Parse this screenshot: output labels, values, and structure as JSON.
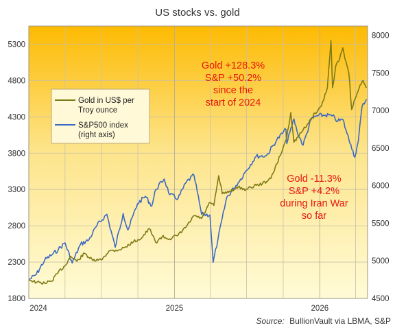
{
  "chart_data": {
    "type": "line",
    "title": "US stocks vs. gold",
    "source_label": "Source:",
    "source_text": "BullionVault via LBMA, S&P",
    "x_ticks": [
      "2024",
      "2025",
      "2026"
    ],
    "x_range": [
      "2024-01",
      "2026-05"
    ],
    "y_left": {
      "ticks": [
        1800,
        2300,
        2800,
        3300,
        3800,
        4300,
        4800,
        5300
      ],
      "range": [
        1800,
        5550
      ]
    },
    "y_right": {
      "ticks": [
        4500,
        5000,
        5500,
        6000,
        6500,
        7000,
        7500,
        8000
      ],
      "range": [
        4500,
        8125
      ]
    },
    "legend": [
      {
        "name": "Gold in US$ per Troy ounce",
        "color": "#7d7a16"
      },
      {
        "name": "S&P500 index (right axis)",
        "color": "#3b68c4"
      }
    ],
    "series": [
      {
        "name": "Gold in US$ per Troy ounce",
        "axis": "left",
        "color": "#7d7a16",
        "points": [
          [
            "2024-01-02",
            2060
          ],
          [
            "2024-01-20",
            2020
          ],
          [
            "2024-02-10",
            2010
          ],
          [
            "2024-02-28",
            2040
          ],
          [
            "2024-03-15",
            2160
          ],
          [
            "2024-04-01",
            2250
          ],
          [
            "2024-04-15",
            2380
          ],
          [
            "2024-05-01",
            2310
          ],
          [
            "2024-05-20",
            2420
          ],
          [
            "2024-06-10",
            2320
          ],
          [
            "2024-07-01",
            2330
          ],
          [
            "2024-07-20",
            2450
          ],
          [
            "2024-08-15",
            2470
          ],
          [
            "2024-09-01",
            2510
          ],
          [
            "2024-09-20",
            2580
          ],
          [
            "2024-10-10",
            2630
          ],
          [
            "2024-10-30",
            2760
          ],
          [
            "2024-11-15",
            2570
          ],
          [
            "2024-12-01",
            2650
          ],
          [
            "2024-12-20",
            2620
          ],
          [
            "2025-01-10",
            2670
          ],
          [
            "2025-01-31",
            2790
          ],
          [
            "2025-02-20",
            2940
          ],
          [
            "2025-03-10",
            2900
          ],
          [
            "2025-03-31",
            3120
          ],
          [
            "2025-04-10",
            3080
          ],
          [
            "2025-04-22",
            3490
          ],
          [
            "2025-05-01",
            3240
          ],
          [
            "2025-05-20",
            3280
          ],
          [
            "2025-06-10",
            3330
          ],
          [
            "2025-06-30",
            3300
          ],
          [
            "2025-07-20",
            3350
          ],
          [
            "2025-08-10",
            3380
          ],
          [
            "2025-08-31",
            3450
          ],
          [
            "2025-09-15",
            3650
          ],
          [
            "2025-09-30",
            3860
          ],
          [
            "2025-10-10",
            4020
          ],
          [
            "2025-10-20",
            4360
          ],
          [
            "2025-10-28",
            3950
          ],
          [
            "2025-11-15",
            4080
          ],
          [
            "2025-12-01",
            4200
          ],
          [
            "2025-12-20",
            4350
          ],
          [
            "2026-01-05",
            4450
          ],
          [
            "2026-01-20",
            4700
          ],
          [
            "2026-01-29",
            5350
          ],
          [
            "2026-02-02",
            4700
          ],
          [
            "2026-02-10",
            5000
          ],
          [
            "2026-02-20",
            5100
          ],
          [
            "2026-02-28",
            5250
          ],
          [
            "2026-03-05",
            5100
          ],
          [
            "2026-03-15",
            4900
          ],
          [
            "2026-03-22",
            4400
          ],
          [
            "2026-03-31",
            4550
          ],
          [
            "2026-04-10",
            4700
          ],
          [
            "2026-04-20",
            4800
          ],
          [
            "2026-04-28",
            4700
          ]
        ]
      },
      {
        "name": "S&P500 index (right axis)",
        "axis": "right",
        "color": "#3b68c4",
        "points": [
          [
            "2024-01-02",
            4750
          ],
          [
            "2024-01-20",
            4820
          ],
          [
            "2024-02-10",
            5010
          ],
          [
            "2024-02-28",
            5080
          ],
          [
            "2024-03-15",
            5150
          ],
          [
            "2024-04-01",
            5240
          ],
          [
            "2024-04-19",
            4970
          ],
          [
            "2024-05-10",
            5220
          ],
          [
            "2024-05-31",
            5280
          ],
          [
            "2024-06-20",
            5470
          ],
          [
            "2024-07-15",
            5620
          ],
          [
            "2024-08-05",
            5180
          ],
          [
            "2024-08-25",
            5630
          ],
          [
            "2024-09-06",
            5410
          ],
          [
            "2024-09-30",
            5760
          ],
          [
            "2024-10-20",
            5860
          ],
          [
            "2024-11-05",
            5730
          ],
          [
            "2024-11-15",
            5950
          ],
          [
            "2024-12-06",
            6090
          ],
          [
            "2024-12-20",
            5880
          ],
          [
            "2025-01-10",
            5830
          ],
          [
            "2025-01-31",
            6050
          ],
          [
            "2025-02-19",
            6140
          ],
          [
            "2025-03-10",
            5620
          ],
          [
            "2025-03-31",
            5610
          ],
          [
            "2025-04-08",
            4980
          ],
          [
            "2025-04-20",
            5280
          ],
          [
            "2025-05-12",
            5840
          ],
          [
            "2025-06-10",
            6040
          ],
          [
            "2025-06-30",
            6200
          ],
          [
            "2025-07-25",
            6390
          ],
          [
            "2025-08-20",
            6400
          ],
          [
            "2025-09-15",
            6610
          ],
          [
            "2025-10-08",
            6750
          ],
          [
            "2025-10-10",
            6560
          ],
          [
            "2025-10-28",
            6890
          ],
          [
            "2025-11-05",
            6720
          ],
          [
            "2025-11-20",
            6540
          ],
          [
            "2025-12-10",
            6880
          ],
          [
            "2025-12-24",
            6930
          ],
          [
            "2026-01-15",
            6940
          ],
          [
            "2026-02-01",
            6930
          ],
          [
            "2026-02-15",
            6860
          ],
          [
            "2026-02-28",
            6880
          ],
          [
            "2026-03-10",
            6700
          ],
          [
            "2026-03-20",
            6550
          ],
          [
            "2026-03-30",
            6380
          ],
          [
            "2026-04-08",
            6600
          ],
          [
            "2026-04-17",
            7050
          ],
          [
            "2026-04-28",
            7150
          ]
        ]
      }
    ],
    "annotations": [
      {
        "lines": [
          "Gold +128.3%",
          "S&P +50.2%",
          "since the",
          "start of 2024"
        ],
        "color": "#e8160c"
      },
      {
        "lines": [
          "Gold -11.3%",
          "S&P +4.2%",
          "during Iran War",
          "so far"
        ],
        "color": "#e8160c"
      }
    ],
    "grid": true,
    "legend_position": "upper-left"
  }
}
